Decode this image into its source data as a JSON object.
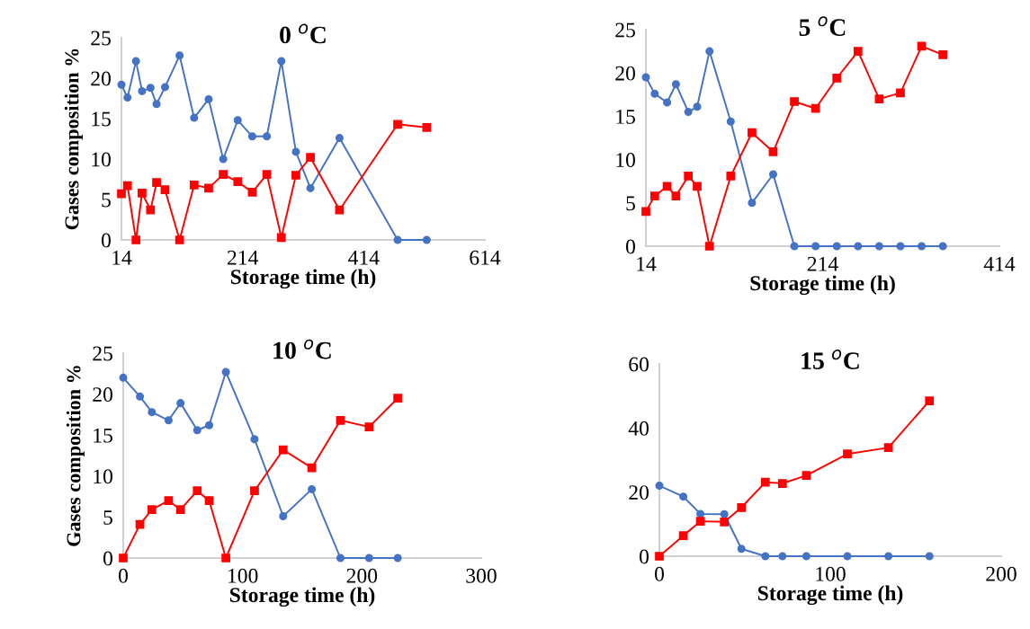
{
  "chart_data": [
    {
      "type": "line",
      "title": "0 $^{o}$C",
      "xlabel": "Storage time (h)",
      "ylabel": "Gases composition %",
      "xlim": [
        14,
        614
      ],
      "xticks": [
        14,
        214,
        414,
        614
      ],
      "ylim": [
        0,
        25
      ],
      "yticks": [
        0,
        5,
        10,
        15,
        20,
        25
      ],
      "grid": false,
      "x": [
        14,
        24,
        38,
        48,
        62,
        72,
        86,
        110,
        134,
        158,
        182,
        206,
        230,
        254,
        278,
        302,
        326,
        374,
        470,
        518
      ],
      "series": [
        {
          "color": "#4472c4",
          "marker": "circle",
          "values": [
            19.2,
            17.6,
            22.1,
            18.4,
            18.8,
            16.8,
            18.9,
            22.8,
            15.1,
            17.4,
            10.0,
            14.8,
            12.8,
            12.8,
            22.1,
            10.9,
            6.4,
            12.6,
            0,
            0
          ]
        },
        {
          "color": "#ff0000",
          "marker": "square",
          "values": [
            5.7,
            6.7,
            0,
            5.8,
            3.7,
            7.1,
            6.2,
            0,
            6.8,
            6.4,
            8.1,
            7.2,
            5.9,
            8.1,
            0.3,
            8.0,
            10.2,
            3.7,
            14.3,
            13.9
          ]
        }
      ]
    },
    {
      "type": "line",
      "title": "5 $^{o}$C",
      "xlabel": "Storage time (h)",
      "xlim": [
        14,
        414
      ],
      "xticks": [
        14,
        214,
        414
      ],
      "ylim": [
        0,
        25
      ],
      "yticks": [
        0,
        5,
        10,
        15,
        20,
        25
      ],
      "grid": false,
      "x": [
        14,
        24,
        38,
        48,
        62,
        72,
        86,
        110,
        134,
        158,
        182,
        206,
        230,
        254,
        278,
        302,
        326,
        350
      ],
      "series": [
        {
          "color": "#4472c4",
          "marker": "circle",
          "values": [
            19.5,
            17.6,
            16.6,
            18.7,
            15.5,
            16.1,
            22.5,
            14.4,
            5.0,
            8.3,
            0,
            0,
            0,
            0,
            0,
            0,
            0,
            0
          ]
        },
        {
          "color": "#ff0000",
          "marker": "square",
          "values": [
            4.0,
            5.8,
            6.9,
            5.8,
            8.1,
            6.9,
            0,
            8.1,
            13.1,
            10.9,
            16.7,
            15.9,
            19.4,
            22.5,
            17.0,
            17.7,
            23.1,
            22.1
          ]
        }
      ]
    },
    {
      "type": "line",
      "title": "10 $^{o}$C",
      "xlabel": "Storage time (h)",
      "ylabel": "Gases composition %",
      "xlim": [
        0,
        300
      ],
      "xticks": [
        0,
        100,
        200,
        300
      ],
      "ylim": [
        0,
        25
      ],
      "yticks": [
        0,
        5,
        10,
        15,
        20,
        25
      ],
      "grid": false,
      "x": [
        0,
        14,
        24,
        38,
        48,
        62,
        72,
        86,
        110,
        134,
        158,
        182,
        206,
        230
      ],
      "series": [
        {
          "color": "#4472c4",
          "marker": "circle",
          "values": [
            22.0,
            19.7,
            17.8,
            16.8,
            18.9,
            15.6,
            16.2,
            22.7,
            14.5,
            5.1,
            8.4,
            0,
            0,
            0
          ]
        },
        {
          "color": "#ff0000",
          "marker": "square",
          "values": [
            0,
            4.1,
            5.9,
            7.0,
            5.9,
            8.2,
            7.0,
            0,
            8.2,
            13.2,
            11.0,
            16.8,
            16.0,
            19.5
          ]
        }
      ]
    },
    {
      "type": "line",
      "title": "15 $^{o}$C",
      "xlabel": "Storage time (h)",
      "xlim": [
        0,
        200
      ],
      "xticks": [
        0,
        100,
        200
      ],
      "ylim": [
        0,
        60
      ],
      "yticks": [
        0,
        20,
        40,
        60
      ],
      "grid": false,
      "x": [
        0,
        14,
        24,
        38,
        48,
        62,
        72,
        86,
        110,
        134,
        158
      ],
      "series": [
        {
          "color": "#4472c4",
          "marker": "circle",
          "values": [
            22.0,
            18.6,
            13.2,
            13.1,
            2.3,
            0,
            0,
            0,
            0,
            0,
            0
          ]
        },
        {
          "color": "#ff0000",
          "marker": "square",
          "values": [
            0,
            6.4,
            10.9,
            10.7,
            15.2,
            23.1,
            22.7,
            25.2,
            31.9,
            33.9,
            48.5
          ]
        }
      ]
    }
  ]
}
